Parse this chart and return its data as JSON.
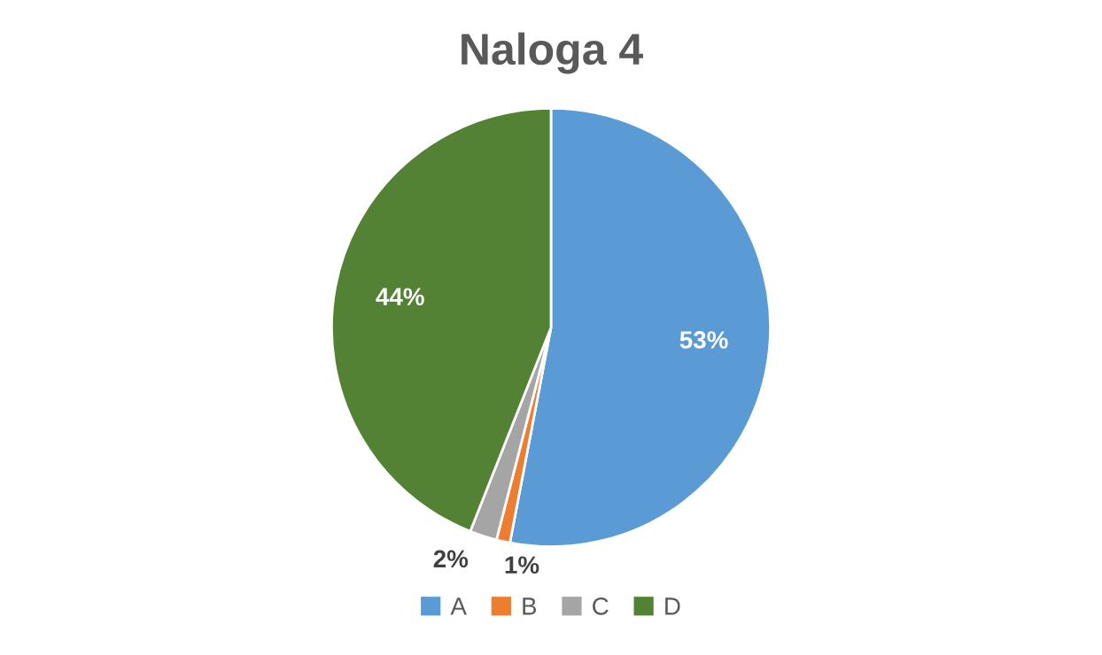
{
  "chart_data": {
    "type": "pie",
    "title": "Naloga 4",
    "categories": [
      "A",
      "B",
      "C",
      "D"
    ],
    "values": [
      53,
      1,
      2,
      44
    ],
    "value_labels": [
      "53%",
      "1%",
      "2%",
      "44%"
    ],
    "colors": [
      "#5b9bd5",
      "#ed7d31",
      "#a5a5a5",
      "#548235"
    ],
    "legend": "bottom"
  }
}
